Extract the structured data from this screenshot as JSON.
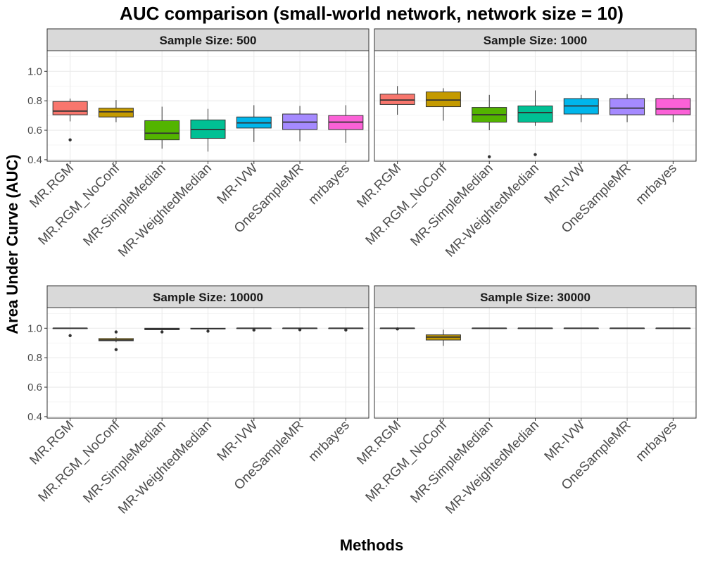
{
  "chart_data": {
    "type": "boxplot",
    "title": "AUC comparison (small-world network, network size = 10)",
    "xlabel": "Methods",
    "ylabel": "Area Under Curve (AUC)",
    "ylim": [
      0.39,
      1.14
    ],
    "yticks": [
      0.4,
      0.6,
      0.8,
      1.0
    ],
    "ytick_labels": [
      "0.4",
      "0.6",
      "0.8",
      "1.0"
    ],
    "categories": [
      "MR.RGM",
      "MR.RGM_NoConf",
      "MR-SimpleMedian",
      "MR-WeightedMedian",
      "MR-IVW",
      "OneSampleMR",
      "mrbayes"
    ],
    "colors": [
      "#F8766D",
      "#C49A00",
      "#53B400",
      "#00C094",
      "#00B6EB",
      "#A58AFF",
      "#FB61D7"
    ],
    "panels": [
      {
        "label": "Sample Size: 500",
        "boxes": [
          {
            "whislo": 0.66,
            "q1": 0.705,
            "med": 0.73,
            "q3": 0.795,
            "whishi": 0.815,
            "outliers": [
              0.535
            ]
          },
          {
            "whislo": 0.655,
            "q1": 0.69,
            "med": 0.725,
            "q3": 0.75,
            "whishi": 0.805,
            "outliers": []
          },
          {
            "whislo": 0.475,
            "q1": 0.535,
            "med": 0.58,
            "q3": 0.665,
            "whishi": 0.76,
            "outliers": []
          },
          {
            "whislo": 0.455,
            "q1": 0.545,
            "med": 0.605,
            "q3": 0.67,
            "whishi": 0.745,
            "outliers": []
          },
          {
            "whislo": 0.52,
            "q1": 0.615,
            "med": 0.65,
            "q3": 0.69,
            "whishi": 0.77,
            "outliers": []
          },
          {
            "whislo": 0.525,
            "q1": 0.605,
            "med": 0.655,
            "q3": 0.71,
            "whishi": 0.765,
            "outliers": []
          },
          {
            "whislo": 0.515,
            "q1": 0.605,
            "med": 0.655,
            "q3": 0.7,
            "whishi": 0.77,
            "outliers": []
          }
        ]
      },
      {
        "label": "Sample Size: 1000",
        "boxes": [
          {
            "whislo": 0.705,
            "q1": 0.775,
            "med": 0.805,
            "q3": 0.845,
            "whishi": 0.9,
            "outliers": []
          },
          {
            "whislo": 0.665,
            "q1": 0.76,
            "med": 0.805,
            "q3": 0.86,
            "whishi": 0.885,
            "outliers": []
          },
          {
            "whislo": 0.6,
            "q1": 0.655,
            "med": 0.705,
            "q3": 0.755,
            "whishi": 0.84,
            "outliers": [
              0.42
            ]
          },
          {
            "whislo": 0.63,
            "q1": 0.655,
            "med": 0.72,
            "q3": 0.765,
            "whishi": 0.87,
            "outliers": [
              0.435
            ]
          },
          {
            "whislo": 0.655,
            "q1": 0.71,
            "med": 0.765,
            "q3": 0.815,
            "whishi": 0.84,
            "outliers": []
          },
          {
            "whislo": 0.655,
            "q1": 0.705,
            "med": 0.75,
            "q3": 0.815,
            "whishi": 0.845,
            "outliers": []
          },
          {
            "whislo": 0.655,
            "q1": 0.705,
            "med": 0.745,
            "q3": 0.815,
            "whishi": 0.84,
            "outliers": []
          }
        ]
      },
      {
        "label": "Sample Size: 10000",
        "boxes": [
          {
            "whislo": 1.0,
            "q1": 1.0,
            "med": 1.0,
            "q3": 1.0,
            "whishi": 1.0,
            "outliers": [
              0.95
            ]
          },
          {
            "whislo": 0.905,
            "q1": 0.915,
            "med": 0.92,
            "q3": 0.93,
            "whishi": 0.94,
            "outliers": [
              0.975,
              0.855
            ]
          },
          {
            "whislo": 0.985,
            "q1": 0.99,
            "med": 0.995,
            "q3": 1.0,
            "whishi": 1.0,
            "outliers": [
              0.975
            ]
          },
          {
            "whislo": 0.99,
            "q1": 0.995,
            "med": 0.997,
            "q3": 1.0,
            "whishi": 1.0,
            "outliers": [
              0.98
            ]
          },
          {
            "whislo": 1.0,
            "q1": 1.0,
            "med": 1.0,
            "q3": 1.0,
            "whishi": 1.0,
            "outliers": [
              0.988
            ]
          },
          {
            "whislo": 1.0,
            "q1": 1.0,
            "med": 1.0,
            "q3": 1.0,
            "whishi": 1.0,
            "outliers": [
              0.99
            ]
          },
          {
            "whislo": 1.0,
            "q1": 1.0,
            "med": 1.0,
            "q3": 1.0,
            "whishi": 1.0,
            "outliers": [
              0.988
            ]
          }
        ]
      },
      {
        "label": "Sample Size: 30000",
        "boxes": [
          {
            "whislo": 1.0,
            "q1": 1.0,
            "med": 1.0,
            "q3": 1.0,
            "whishi": 1.0,
            "outliers": [
              0.995
            ]
          },
          {
            "whislo": 0.88,
            "q1": 0.92,
            "med": 0.94,
            "q3": 0.955,
            "whishi": 0.99,
            "outliers": []
          },
          {
            "whislo": 1.0,
            "q1": 1.0,
            "med": 1.0,
            "q3": 1.0,
            "whishi": 1.0,
            "outliers": []
          },
          {
            "whislo": 1.0,
            "q1": 1.0,
            "med": 1.0,
            "q3": 1.0,
            "whishi": 1.0,
            "outliers": []
          },
          {
            "whislo": 1.0,
            "q1": 1.0,
            "med": 1.0,
            "q3": 1.0,
            "whishi": 1.0,
            "outliers": []
          },
          {
            "whislo": 1.0,
            "q1": 1.0,
            "med": 1.0,
            "q3": 1.0,
            "whishi": 1.0,
            "outliers": []
          },
          {
            "whislo": 1.0,
            "q1": 1.0,
            "med": 1.0,
            "q3": 1.0,
            "whishi": 1.0,
            "outliers": []
          }
        ]
      }
    ]
  }
}
